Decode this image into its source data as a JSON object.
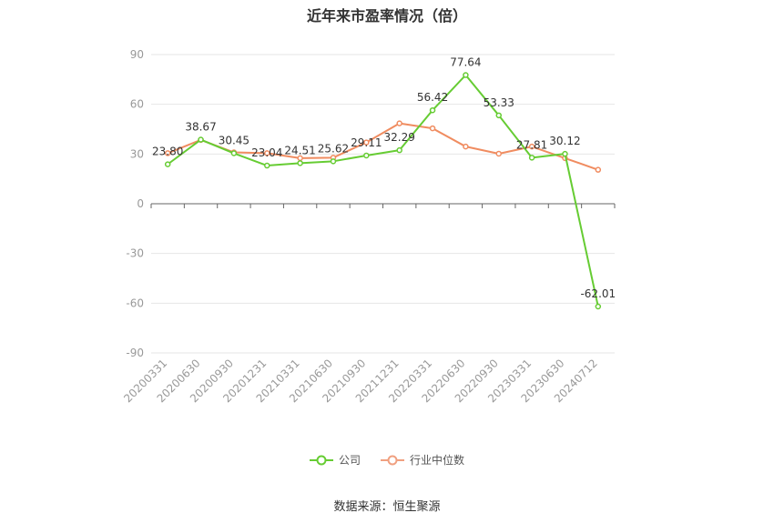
{
  "title": "近年来市盈率情况（倍）",
  "source": "数据来源：恒生聚源",
  "legend": {
    "company": "公司",
    "industry": "行业中位数"
  },
  "colors": {
    "company": "#66cc33",
    "industry": "#f08c60",
    "grid": "#e6e6e6",
    "axis": "#666666",
    "tick_text": "#999999",
    "label_text": "#333333"
  },
  "chart_data": {
    "type": "line",
    "categories": [
      "20200331",
      "20200630",
      "20200930",
      "20201231",
      "20210331",
      "20210630",
      "20210930",
      "20211231",
      "20220331",
      "20220630",
      "20220930",
      "20230331",
      "20230630",
      "20240712"
    ],
    "ylim": [
      -90,
      90
    ],
    "yticks": [
      90,
      60,
      30,
      0,
      -30,
      -60,
      -90
    ],
    "grid": true,
    "legend_position": "bottom",
    "series": [
      {
        "name": "公司",
        "values": [
          23.8,
          38.67,
          30.45,
          23.04,
          24.51,
          25.62,
          29.11,
          32.29,
          56.42,
          77.64,
          53.33,
          27.81,
          30.12,
          -62.01
        ],
        "labels": [
          "23.80",
          "38.67",
          "30.45",
          "23.04",
          "24.51",
          "25.62",
          "29.11",
          "32.29",
          "56.42",
          "77.64",
          "53.33",
          "27.81",
          "30.12",
          "-62.01"
        ]
      },
      {
        "name": "行业中位数",
        "values": [
          30.5,
          38.5,
          31.0,
          30.5,
          27.5,
          27.8,
          37.0,
          48.5,
          45.5,
          34.5,
          30.2,
          34.5,
          27.5,
          20.5
        ]
      }
    ]
  }
}
